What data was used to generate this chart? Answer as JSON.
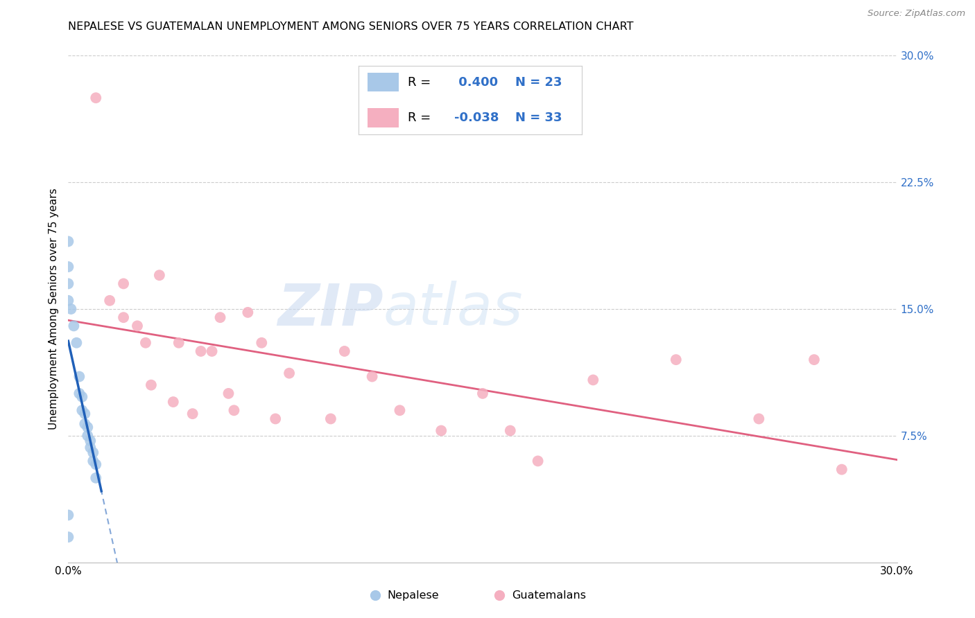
{
  "title": "NEPALESE VS GUATEMALAN UNEMPLOYMENT AMONG SENIORS OVER 75 YEARS CORRELATION CHART",
  "source": "Source: ZipAtlas.com",
  "ylabel": "Unemployment Among Seniors over 75 years",
  "xlim": [
    0.0,
    0.3
  ],
  "ylim": [
    0.0,
    0.3
  ],
  "xtick_vals": [
    0.0,
    0.05,
    0.1,
    0.15,
    0.2,
    0.25,
    0.3
  ],
  "xtick_labels": [
    "0.0%",
    "",
    "",
    "",
    "",
    "",
    "30.0%"
  ],
  "ytick_vals": [
    0.075,
    0.15,
    0.225,
    0.3
  ],
  "ytick_labels": [
    "7.5%",
    "15.0%",
    "22.5%",
    "30.0%"
  ],
  "nepalese_R": 0.4,
  "nepalese_N": 23,
  "guatemalan_R": -0.038,
  "guatemalan_N": 33,
  "nepalese_color": "#a8c8e8",
  "nepalese_line_color": "#2060b8",
  "guatemalan_color": "#f5afc0",
  "guatemalan_line_color": "#e06080",
  "background_color": "#ffffff",
  "watermark_zip": "ZIP",
  "watermark_atlas": "atlas",
  "nepalese_x": [
    0.0,
    0.0,
    0.0,
    0.0,
    0.001,
    0.002,
    0.003,
    0.004,
    0.004,
    0.005,
    0.005,
    0.006,
    0.006,
    0.007,
    0.007,
    0.008,
    0.008,
    0.009,
    0.009,
    0.01,
    0.01,
    0.0,
    0.0
  ],
  "nepalese_y": [
    0.19,
    0.175,
    0.165,
    0.155,
    0.15,
    0.14,
    0.13,
    0.11,
    0.1,
    0.098,
    0.09,
    0.088,
    0.082,
    0.08,
    0.075,
    0.072,
    0.068,
    0.065,
    0.06,
    0.058,
    0.05,
    0.028,
    0.015
  ],
  "guatemalan_x": [
    0.01,
    0.015,
    0.02,
    0.02,
    0.025,
    0.028,
    0.03,
    0.033,
    0.038,
    0.04,
    0.045,
    0.048,
    0.052,
    0.055,
    0.058,
    0.06,
    0.065,
    0.07,
    0.075,
    0.08,
    0.095,
    0.1,
    0.11,
    0.12,
    0.135,
    0.15,
    0.16,
    0.17,
    0.19,
    0.22,
    0.25,
    0.27,
    0.28
  ],
  "guatemalan_y": [
    0.275,
    0.155,
    0.145,
    0.165,
    0.14,
    0.13,
    0.105,
    0.17,
    0.095,
    0.13,
    0.088,
    0.125,
    0.125,
    0.145,
    0.1,
    0.09,
    0.148,
    0.13,
    0.085,
    0.112,
    0.085,
    0.125,
    0.11,
    0.09,
    0.078,
    0.1,
    0.078,
    0.06,
    0.108,
    0.12,
    0.085,
    0.12,
    0.055
  ]
}
